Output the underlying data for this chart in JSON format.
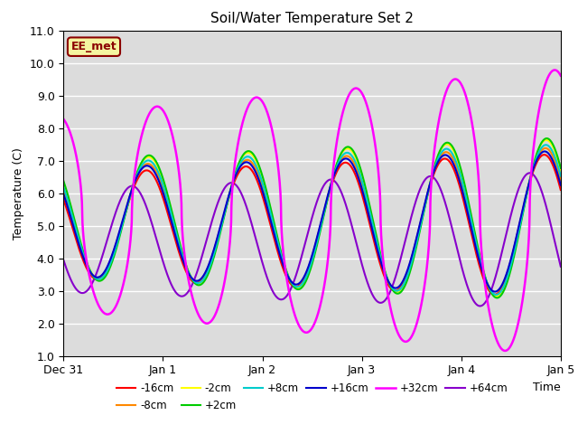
{
  "title": "Soil/Water Temperature Set 2",
  "xlabel": "Time",
  "ylabel": "Temperature (C)",
  "ylim": [
    1.0,
    11.0
  ],
  "yticks": [
    1.0,
    2.0,
    3.0,
    4.0,
    5.0,
    6.0,
    7.0,
    8.0,
    9.0,
    10.0,
    11.0
  ],
  "bg_color": "#dcdcdc",
  "annotation_text": "EE_met",
  "annotation_color": "#8B0000",
  "annotation_bg": "#f5f5a0",
  "annotation_border": "#8B0000",
  "series_colors": {
    "-16cm": "#ff0000",
    "-8cm": "#ff8800",
    "-2cm": "#ffff00",
    "+2cm": "#00cc00",
    "+8cm": "#00cccc",
    "+16cm": "#0000cc",
    "+32cm": "#ff00ff",
    "+64cm": "#8800cc"
  },
  "xtick_labels": [
    "Dec 31",
    "Jan 1",
    "Jan 2",
    "Jan 3",
    "Jan 4",
    "Jan 5"
  ],
  "xtick_positions": [
    0,
    24,
    48,
    72,
    96,
    120
  ]
}
